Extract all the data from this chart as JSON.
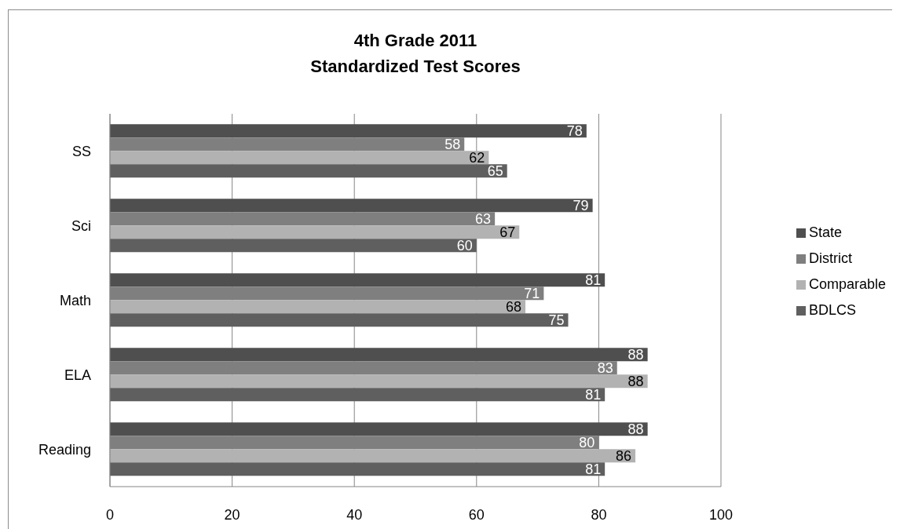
{
  "chart_data": {
    "type": "bar",
    "orientation": "horizontal",
    "title": "4th Grade 2011\nStandardized Test Scores",
    "categories": [
      "SS",
      "Sci",
      "Math",
      "ELA",
      "Reading"
    ],
    "series": [
      {
        "name": "State",
        "color": "#4f4f4f",
        "values": [
          78,
          79,
          81,
          88,
          88
        ]
      },
      {
        "name": "District",
        "color": "#7f7f7f",
        "values": [
          58,
          63,
          71,
          83,
          80
        ]
      },
      {
        "name": "Comparable",
        "color": "#b2b2b2",
        "values": [
          62,
          67,
          68,
          88,
          86
        ]
      },
      {
        "name": "BDLCS",
        "color": "#5f5f5f",
        "values": [
          65,
          60,
          75,
          81,
          81
        ]
      }
    ],
    "xlim": [
      0,
      100
    ],
    "xticks": [
      0,
      20,
      40,
      60,
      80,
      100
    ],
    "grid": "x",
    "legend": "right",
    "data_labels": true
  }
}
